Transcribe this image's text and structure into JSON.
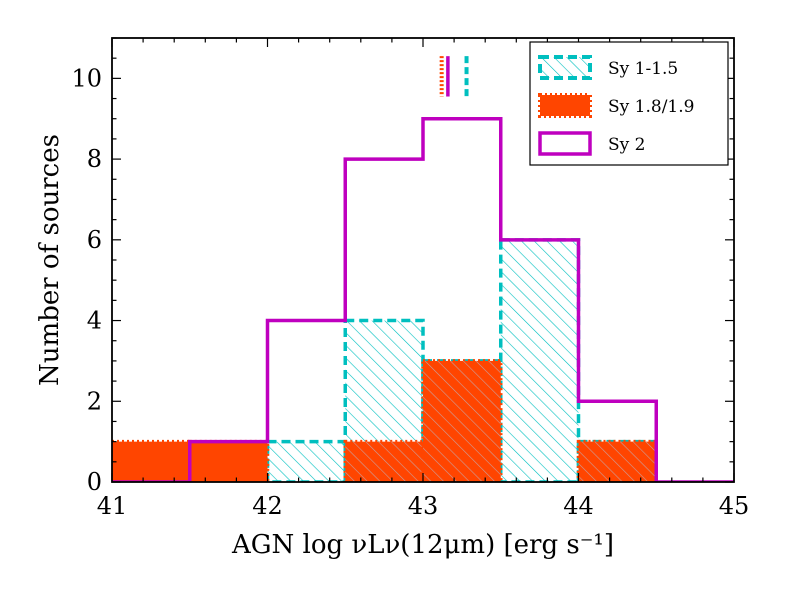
{
  "chart_data": {
    "type": "histogram",
    "title": "",
    "xlabel": "AGN log νLν(12μm) [erg s⁻¹]",
    "ylabel": "Number of sources",
    "xlim": [
      41,
      45
    ],
    "ylim": [
      0,
      11
    ],
    "xticks": [
      41,
      42,
      43,
      44,
      45
    ],
    "yticks": [
      0,
      2,
      4,
      6,
      8,
      10
    ],
    "bin_edges": [
      41.0,
      41.5,
      42.0,
      42.5,
      43.0,
      43.5,
      44.0,
      44.5,
      45.0
    ],
    "legend_position": "top-right",
    "series": [
      {
        "name": "Sy 1-1.5",
        "style": "hatched-dashed",
        "color": "#00bfbf",
        "counts": [
          0,
          0,
          1,
          4,
          3,
          6,
          1,
          0
        ],
        "median_marker": 43.28
      },
      {
        "name": "Sy 1.8/1.9",
        "style": "filled-dotted",
        "color": "#ff4500",
        "counts": [
          1,
          1,
          0,
          1,
          3,
          0,
          1,
          0
        ],
        "median_marker": 43.12
      },
      {
        "name": "Sy 2",
        "style": "step-solid",
        "color": "#bf00bf",
        "counts": [
          0,
          1,
          4,
          8,
          9,
          6,
          2,
          0
        ],
        "median_marker": 43.16
      }
    ]
  }
}
